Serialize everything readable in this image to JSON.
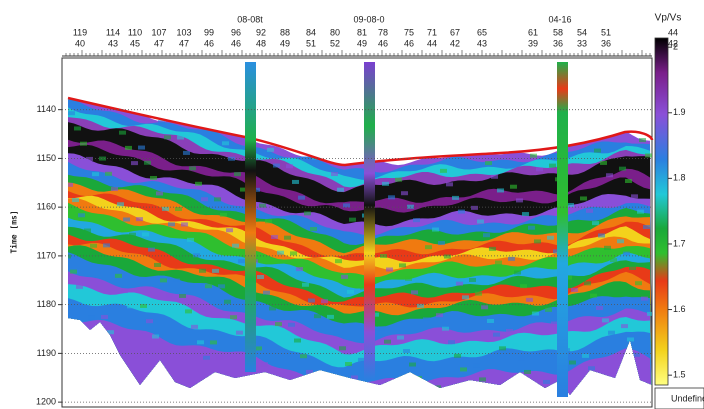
{
  "y_axis": {
    "label": "Time [ms]",
    "lim": [
      1129.4,
      1201
    ],
    "ticks": [
      1140,
      1150,
      1160,
      1170,
      1180,
      1190,
      1200
    ]
  },
  "top_axis": {
    "row1": [
      119,
      114,
      110,
      107,
      103,
      99,
      96,
      92,
      88,
      84,
      80,
      81,
      78,
      75,
      71,
      67,
      65,
      61,
      58,
      54,
      51,
      44
    ],
    "row2": [
      40,
      43,
      45,
      47,
      47,
      46,
      46,
      48,
      49,
      51,
      52,
      49,
      46,
      46,
      44,
      42,
      43,
      39,
      36,
      33,
      36,
      42
    ]
  },
  "wells": [
    {
      "name": "08-08t"
    },
    {
      "name": "09-08-0"
    },
    {
      "name": "04-16"
    }
  ],
  "colorbar": {
    "title": "Vp/Vs",
    "lim": [
      1.485,
      2.014
    ],
    "ticks": [
      2,
      1.9,
      1.8,
      1.7,
      1.6,
      1.5
    ],
    "undefined_label": "Undefined"
  }
}
